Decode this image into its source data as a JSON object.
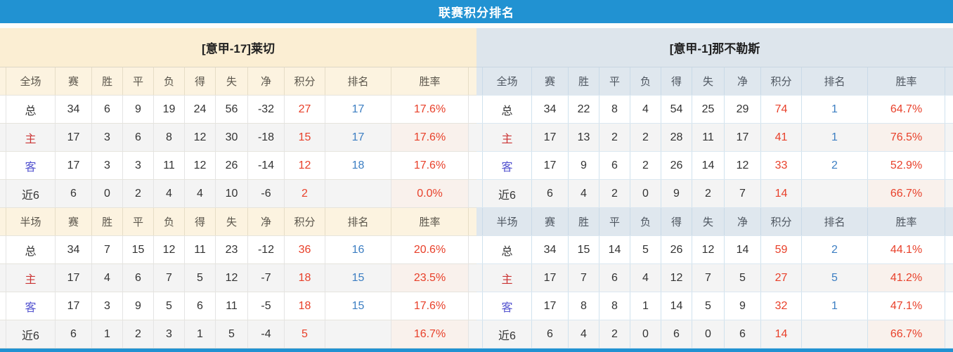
{
  "page": {
    "title": "联赛积分排名"
  },
  "colors": {
    "banner_blue": "#2192d2",
    "home_header_cream": "#fbeed3",
    "away_header_blue": "#dde5ec",
    "points_red": "#e8402a",
    "rank_blue": "#3c7ec2",
    "home_row_label_red": "#cb3434",
    "away_row_label_blue": "#5353cf"
  },
  "teams": [
    {
      "id": "home",
      "name": "[意甲-17]莱切",
      "theme": "cream",
      "sections": [
        {
          "scope": "全场",
          "columns": [
            "全场",
            "赛",
            "胜",
            "平",
            "负",
            "得",
            "失",
            "净",
            "积分",
            "排名",
            "胜率"
          ],
          "rows": [
            {
              "label": "总",
              "stats": [
                "34",
                "6",
                "9",
                "19",
                "24",
                "56",
                "-32"
              ],
              "points": "27",
              "rank": "17",
              "win_rate": "17.6%"
            },
            {
              "label": "主",
              "stats": [
                "17",
                "3",
                "6",
                "8",
                "12",
                "30",
                "-18"
              ],
              "points": "15",
              "rank": "17",
              "win_rate": "17.6%"
            },
            {
              "label": "客",
              "stats": [
                "17",
                "3",
                "3",
                "11",
                "12",
                "26",
                "-14"
              ],
              "points": "12",
              "rank": "18",
              "win_rate": "17.6%"
            },
            {
              "label": "近6",
              "stats": [
                "6",
                "0",
                "2",
                "4",
                "4",
                "10",
                "-6"
              ],
              "points": "2",
              "rank": "",
              "win_rate": "0.0%"
            }
          ]
        },
        {
          "scope": "半场",
          "columns": [
            "半场",
            "赛",
            "胜",
            "平",
            "负",
            "得",
            "失",
            "净",
            "积分",
            "排名",
            "胜率"
          ],
          "rows": [
            {
              "label": "总",
              "stats": [
                "34",
                "7",
                "15",
                "12",
                "11",
                "23",
                "-12"
              ],
              "points": "36",
              "rank": "16",
              "win_rate": "20.6%"
            },
            {
              "label": "主",
              "stats": [
                "17",
                "4",
                "6",
                "7",
                "5",
                "12",
                "-7"
              ],
              "points": "18",
              "rank": "15",
              "win_rate": "23.5%"
            },
            {
              "label": "客",
              "stats": [
                "17",
                "3",
                "9",
                "5",
                "6",
                "11",
                "-5"
              ],
              "points": "18",
              "rank": "15",
              "win_rate": "17.6%"
            },
            {
              "label": "近6",
              "stats": [
                "6",
                "1",
                "2",
                "3",
                "1",
                "5",
                "-4"
              ],
              "points": "5",
              "rank": "",
              "win_rate": "16.7%"
            }
          ]
        }
      ]
    },
    {
      "id": "away",
      "name": "[意甲-1]那不勒斯",
      "theme": "blue",
      "sections": [
        {
          "scope": "全场",
          "columns": [
            "全场",
            "赛",
            "胜",
            "平",
            "负",
            "得",
            "失",
            "净",
            "积分",
            "排名",
            "胜率"
          ],
          "rows": [
            {
              "label": "总",
              "stats": [
                "34",
                "22",
                "8",
                "4",
                "54",
                "25",
                "29"
              ],
              "points": "74",
              "rank": "1",
              "win_rate": "64.7%"
            },
            {
              "label": "主",
              "stats": [
                "17",
                "13",
                "2",
                "2",
                "28",
                "11",
                "17"
              ],
              "points": "41",
              "rank": "1",
              "win_rate": "76.5%"
            },
            {
              "label": "客",
              "stats": [
                "17",
                "9",
                "6",
                "2",
                "26",
                "14",
                "12"
              ],
              "points": "33",
              "rank": "2",
              "win_rate": "52.9%"
            },
            {
              "label": "近6",
              "stats": [
                "6",
                "4",
                "2",
                "0",
                "9",
                "2",
                "7"
              ],
              "points": "14",
              "rank": "",
              "win_rate": "66.7%"
            }
          ]
        },
        {
          "scope": "半场",
          "columns": [
            "半场",
            "赛",
            "胜",
            "平",
            "负",
            "得",
            "失",
            "净",
            "积分",
            "排名",
            "胜率"
          ],
          "rows": [
            {
              "label": "总",
              "stats": [
                "34",
                "15",
                "14",
                "5",
                "26",
                "12",
                "14"
              ],
              "points": "59",
              "rank": "2",
              "win_rate": "44.1%"
            },
            {
              "label": "主",
              "stats": [
                "17",
                "7",
                "6",
                "4",
                "12",
                "7",
                "5"
              ],
              "points": "27",
              "rank": "5",
              "win_rate": "41.2%"
            },
            {
              "label": "客",
              "stats": [
                "17",
                "8",
                "8",
                "1",
                "14",
                "5",
                "9"
              ],
              "points": "32",
              "rank": "1",
              "win_rate": "47.1%"
            },
            {
              "label": "近6",
              "stats": [
                "6",
                "4",
                "2",
                "0",
                "6",
                "0",
                "6"
              ],
              "points": "14",
              "rank": "",
              "win_rate": "66.7%"
            }
          ]
        }
      ]
    }
  ]
}
